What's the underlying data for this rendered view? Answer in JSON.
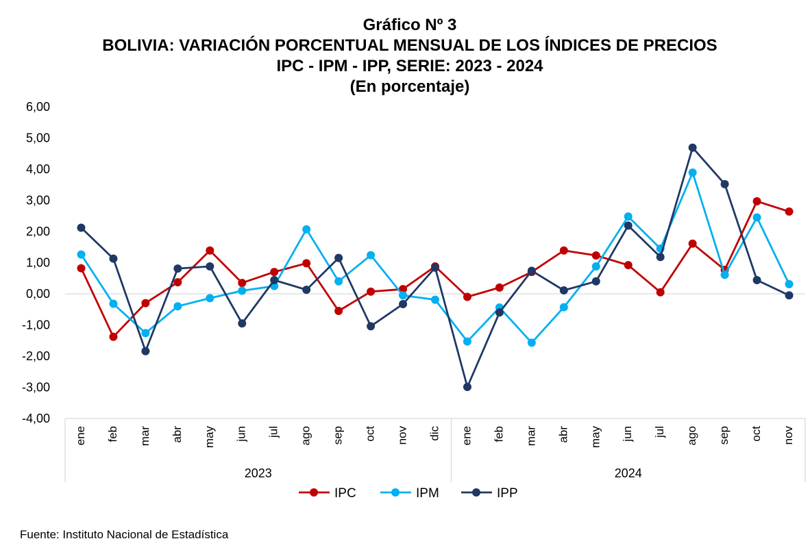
{
  "titles": {
    "line1": "Gráfico Nº 3",
    "line2": "BOLIVIA: VARIACIÓN PORCENTUAL MENSUAL DE LOS ÍNDICES DE PRECIOS",
    "line3": "IPC - IPM - IPP, SERIE: 2023 - 2024",
    "line4": "(En porcentaje)"
  },
  "source": "Fuente: Instituto Nacional de Estadística",
  "chart_data": {
    "type": "line",
    "title": "BOLIVIA: VARIACIÓN PORCENTUAL MENSUAL DE LOS ÍNDICES DE PRECIOS",
    "ylim": [
      -4,
      6
    ],
    "yticks": [
      "-4,00",
      "-3,00",
      "-2,00",
      "-1,00",
      "0,00",
      "1,00",
      "2,00",
      "3,00",
      "4,00",
      "5,00",
      "6,00"
    ],
    "grid": false,
    "legend_position": "bottom",
    "groups": [
      {
        "label": "2023",
        "categories": [
          "ene",
          "feb",
          "mar",
          "abr",
          "may",
          "jun",
          "jul",
          "ago",
          "sep",
          "oct",
          "nov",
          "dic"
        ]
      },
      {
        "label": "2024",
        "categories": [
          "ene",
          "feb",
          "mar",
          "abr",
          "may",
          "jun",
          "jul",
          "ago",
          "sep",
          "oct",
          "nov"
        ]
      }
    ],
    "series": [
      {
        "name": "IPC",
        "color": "#C00000",
        "values": [
          0.82,
          -1.38,
          -0.3,
          0.37,
          1.39,
          0.35,
          0.7,
          0.98,
          -0.55,
          0.07,
          0.15,
          0.88,
          -0.1,
          0.2,
          0.7,
          1.39,
          1.23,
          0.92,
          0.05,
          1.61,
          0.77,
          2.97,
          2.64
        ]
      },
      {
        "name": "IPM",
        "color": "#00B0F0",
        "values": [
          1.26,
          -0.32,
          -1.26,
          -0.4,
          -0.14,
          0.1,
          0.25,
          2.07,
          0.4,
          1.24,
          -0.05,
          -0.19,
          -1.53,
          -0.44,
          -1.57,
          -0.43,
          0.88,
          2.48,
          1.45,
          3.89,
          0.61,
          2.45,
          0.31
        ]
      },
      {
        "name": "IPP",
        "color": "#1F3864",
        "values": [
          2.12,
          1.13,
          -1.84,
          0.81,
          0.88,
          -0.95,
          0.44,
          0.13,
          1.15,
          -1.04,
          -0.33,
          0.84,
          -2.99,
          -0.6,
          0.74,
          0.11,
          0.4,
          2.19,
          1.18,
          4.69,
          3.52,
          0.44,
          -0.05
        ]
      }
    ]
  }
}
